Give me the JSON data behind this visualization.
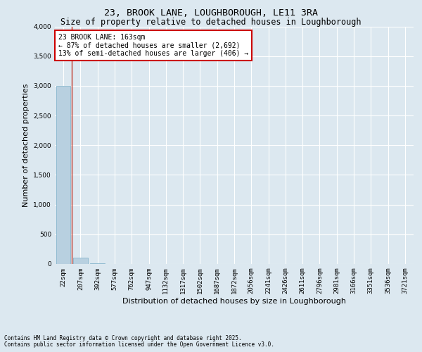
{
  "title_line1": "23, BROOK LANE, LOUGHBOROUGH, LE11 3RA",
  "title_line2": "Size of property relative to detached houses in Loughborough",
  "xlabel": "Distribution of detached houses by size in Loughborough",
  "ylabel": "Number of detached properties",
  "annotation_title": "23 BROOK LANE: 163sqm",
  "annotation_line2": "← 87% of detached houses are smaller (2,692)",
  "annotation_line3": "13% of semi-detached houses are larger (406) →",
  "footer_line1": "Contains HM Land Registry data © Crown copyright and database right 2025.",
  "footer_line2": "Contains public sector information licensed under the Open Government Licence v3.0.",
  "categories": [
    "22sqm",
    "207sqm",
    "392sqm",
    "577sqm",
    "762sqm",
    "947sqm",
    "1132sqm",
    "1317sqm",
    "1502sqm",
    "1687sqm",
    "1872sqm",
    "2056sqm",
    "2241sqm",
    "2426sqm",
    "2611sqm",
    "2796sqm",
    "2981sqm",
    "3166sqm",
    "3351sqm",
    "3536sqm",
    "3721sqm"
  ],
  "values": [
    3002,
    110,
    8,
    3,
    2,
    1,
    1,
    1,
    0,
    0,
    0,
    0,
    0,
    0,
    0,
    0,
    0,
    0,
    0,
    0,
    0
  ],
  "bar_color": "#b8d0e0",
  "bar_edge_color": "#7aafc8",
  "property_line_x": 0.5,
  "property_line_color": "#c0392b",
  "ylim": [
    0,
    4000
  ],
  "yticks": [
    0,
    500,
    1000,
    1500,
    2000,
    2500,
    3000,
    3500,
    4000
  ],
  "background_color": "#dce8f0",
  "plot_bg_color": "#dce8f0",
  "annotation_box_color": "white",
  "annotation_box_edge": "#cc0000",
  "grid_color": "white",
  "title_fontsize": 9.5,
  "subtitle_fontsize": 8.5,
  "tick_fontsize": 6.5,
  "ylabel_fontsize": 8,
  "xlabel_fontsize": 8,
  "annotation_fontsize": 7,
  "footer_fontsize": 5.5
}
